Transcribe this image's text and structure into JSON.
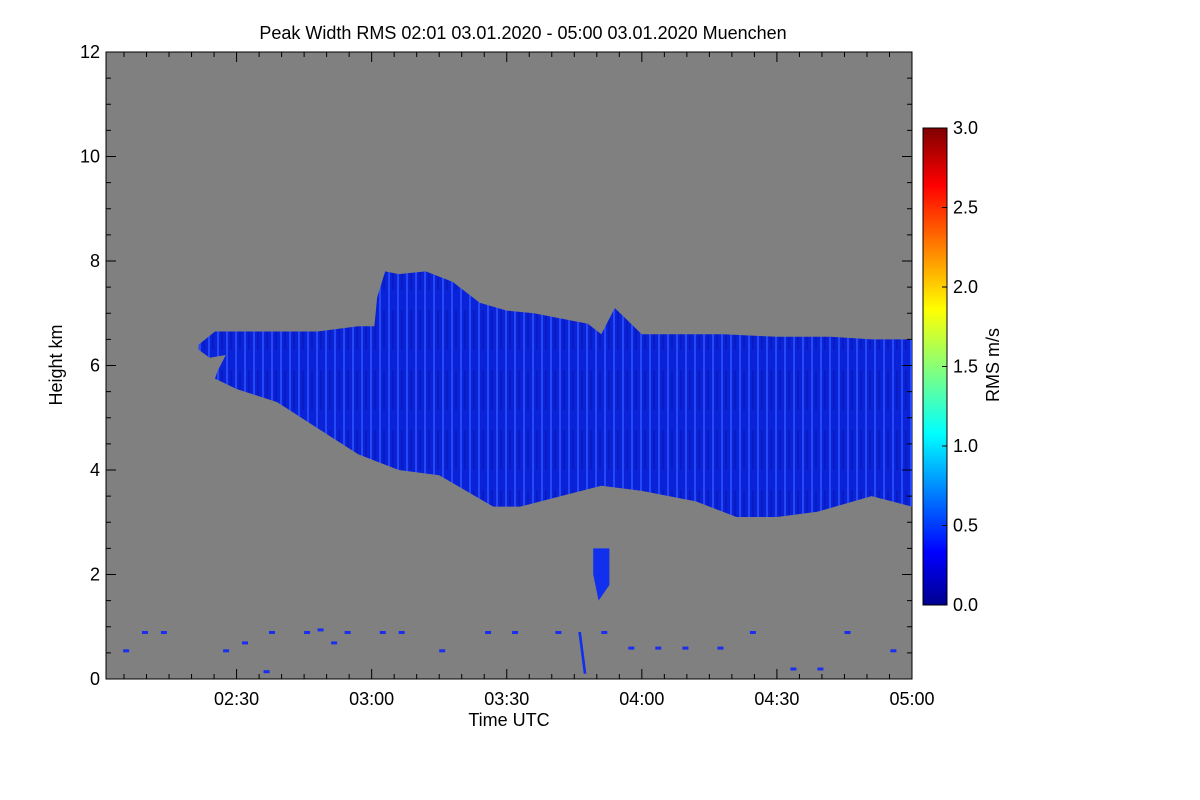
{
  "chart_data": {
    "type": "heatmap",
    "title": "Peak Width RMS   02:01 03.01.2020 - 05:00 03.01.2020 Muenchen",
    "xlabel": "Time UTC",
    "ylabel": "Height km",
    "x_ticks": [
      "02:30",
      "03:00",
      "03:30",
      "04:00",
      "04:30",
      "05:00"
    ],
    "x_tick_values_h": [
      2.5,
      3.0,
      3.5,
      4.0,
      4.5,
      5.0
    ],
    "xlim_h": [
      2.0167,
      5.0
    ],
    "y_ticks": [
      "0",
      "2",
      "4",
      "6",
      "8",
      "10",
      "12"
    ],
    "y_tick_values": [
      0,
      2,
      4,
      6,
      8,
      10,
      12
    ],
    "ylim": [
      0,
      12
    ],
    "background_color": "#808080",
    "colorbar": {
      "label": "RMS m/s",
      "ticks": [
        "0.0",
        "0.5",
        "1.0",
        "1.5",
        "2.0",
        "2.5",
        "3.0"
      ],
      "tick_values": [
        0,
        0.5,
        1.0,
        1.5,
        2.0,
        2.5,
        3.0
      ],
      "range": [
        0,
        3.0
      ],
      "colormap": "jet"
    },
    "features": [
      {
        "name": "main cloud layer",
        "value_rms": 0.35,
        "outline": [
          [
            2.36,
            6.4
          ],
          [
            2.42,
            6.65
          ],
          [
            2.6,
            6.65
          ],
          [
            2.8,
            6.65
          ],
          [
            2.95,
            6.75
          ],
          [
            3.01,
            6.75
          ],
          [
            3.02,
            7.3
          ],
          [
            3.05,
            7.8
          ],
          [
            3.1,
            7.75
          ],
          [
            3.2,
            7.8
          ],
          [
            3.3,
            7.6
          ],
          [
            3.4,
            7.2
          ],
          [
            3.5,
            7.05
          ],
          [
            3.6,
            7.0
          ],
          [
            3.7,
            6.9
          ],
          [
            3.8,
            6.8
          ],
          [
            3.85,
            6.6
          ],
          [
            3.9,
            7.1
          ],
          [
            4.0,
            6.6
          ],
          [
            4.1,
            6.6
          ],
          [
            4.3,
            6.6
          ],
          [
            4.5,
            6.55
          ],
          [
            4.7,
            6.55
          ],
          [
            4.85,
            6.5
          ],
          [
            5.0,
            6.5
          ],
          [
            5.0,
            3.3
          ],
          [
            4.85,
            3.5
          ],
          [
            4.65,
            3.2
          ],
          [
            4.5,
            3.1
          ],
          [
            4.35,
            3.1
          ],
          [
            4.2,
            3.4
          ],
          [
            4.0,
            3.6
          ],
          [
            3.85,
            3.7
          ],
          [
            3.7,
            3.5
          ],
          [
            3.55,
            3.3
          ],
          [
            3.45,
            3.3
          ],
          [
            3.35,
            3.6
          ],
          [
            3.25,
            3.9
          ],
          [
            3.1,
            4.0
          ],
          [
            2.95,
            4.3
          ],
          [
            2.8,
            4.8
          ],
          [
            2.65,
            5.3
          ],
          [
            2.5,
            5.55
          ],
          [
            2.42,
            5.75
          ],
          [
            2.43,
            5.9
          ],
          [
            2.46,
            6.2
          ],
          [
            2.4,
            6.15
          ],
          [
            2.36,
            6.3
          ]
        ]
      },
      {
        "name": "fall streak",
        "value_rms": 0.3,
        "outline": [
          [
            3.82,
            2.5
          ],
          [
            3.88,
            2.5
          ],
          [
            3.88,
            1.8
          ],
          [
            3.84,
            1.5
          ],
          [
            3.82,
            2.0
          ]
        ]
      },
      {
        "name": "low streak",
        "value_rms": 0.3,
        "outline": [
          [
            3.765,
            0.9
          ],
          [
            3.775,
            0.9
          ],
          [
            3.795,
            0.1
          ],
          [
            3.785,
            0.1
          ]
        ]
      }
    ],
    "low_speckles": [
      [
        2.15,
        0.9
      ],
      [
        2.22,
        0.9
      ],
      [
        2.45,
        0.55
      ],
      [
        2.52,
        0.7
      ],
      [
        2.62,
        0.9
      ],
      [
        2.75,
        0.9
      ],
      [
        2.8,
        0.95
      ],
      [
        2.85,
        0.7
      ],
      [
        2.9,
        0.9
      ],
      [
        3.03,
        0.9
      ],
      [
        3.1,
        0.9
      ],
      [
        3.25,
        0.55
      ],
      [
        3.42,
        0.9
      ],
      [
        3.52,
        0.9
      ],
      [
        3.68,
        0.9
      ],
      [
        3.85,
        0.9
      ],
      [
        3.95,
        0.6
      ],
      [
        4.05,
        0.6
      ],
      [
        4.15,
        0.6
      ],
      [
        4.28,
        0.6
      ],
      [
        4.4,
        0.9
      ],
      [
        4.55,
        0.2
      ],
      [
        4.65,
        0.2
      ],
      [
        4.75,
        0.9
      ],
      [
        4.92,
        0.55
      ],
      [
        2.6,
        0.15
      ],
      [
        2.08,
        0.55
      ]
    ]
  }
}
